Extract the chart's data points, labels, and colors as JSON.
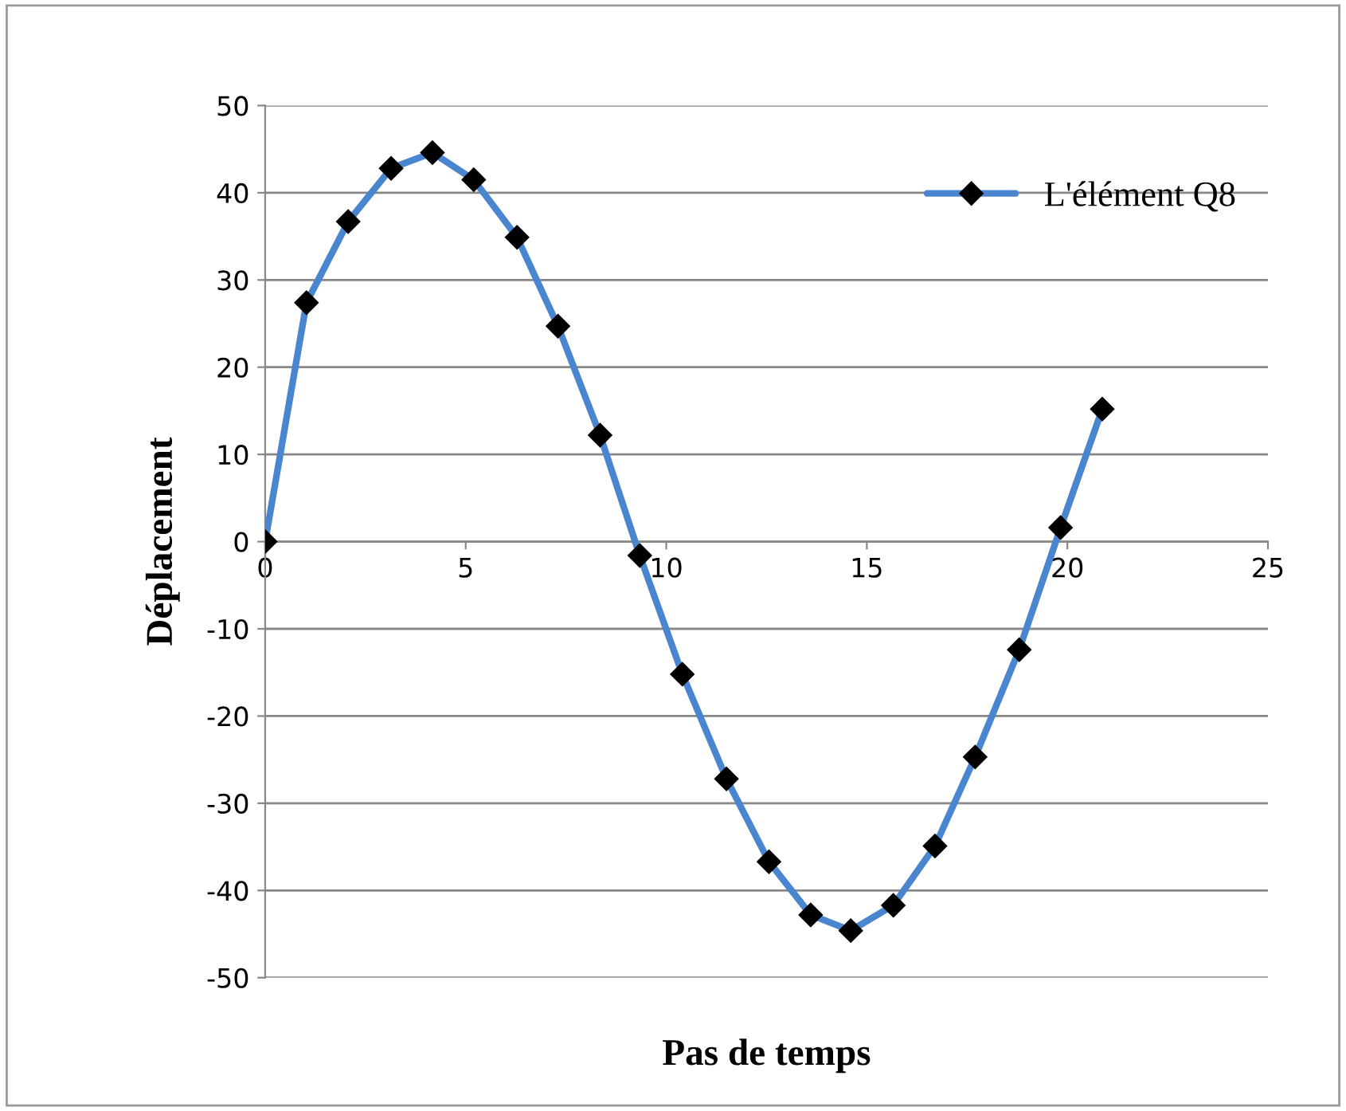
{
  "chart_data": {
    "type": "line",
    "xlabel": "Pas de temps",
    "ylabel": "Déplacement",
    "series": [
      {
        "name": "L'élément Q8",
        "color": "#4a86d0",
        "x": [
          0,
          1.03,
          2.07,
          3.14,
          4.17,
          5.2,
          6.28,
          7.3,
          8.35,
          9.34,
          10.4,
          11.5,
          12.56,
          13.6,
          14.6,
          15.66,
          16.7,
          17.7,
          18.8,
          19.83,
          20.87
        ],
        "values": [
          0,
          27.4,
          36.7,
          42.8,
          44.6,
          41.5,
          34.9,
          24.7,
          12.2,
          -1.6,
          -15.2,
          -27.2,
          -36.7,
          -42.8,
          -44.6,
          -41.7,
          -34.9,
          -24.7,
          -12.4,
          1.6,
          15.2
        ]
      }
    ],
    "xlim": [
      0,
      25
    ],
    "xticks": [
      0,
      5,
      10,
      15,
      20,
      25
    ],
    "ylim": [
      -50,
      50
    ],
    "yticks": [
      -50,
      -40,
      -30,
      -20,
      -10,
      0,
      10,
      20,
      30,
      40,
      50
    ],
    "grid": "y",
    "legend": "top right",
    "marker": "diamond",
    "line_style": "solid"
  }
}
